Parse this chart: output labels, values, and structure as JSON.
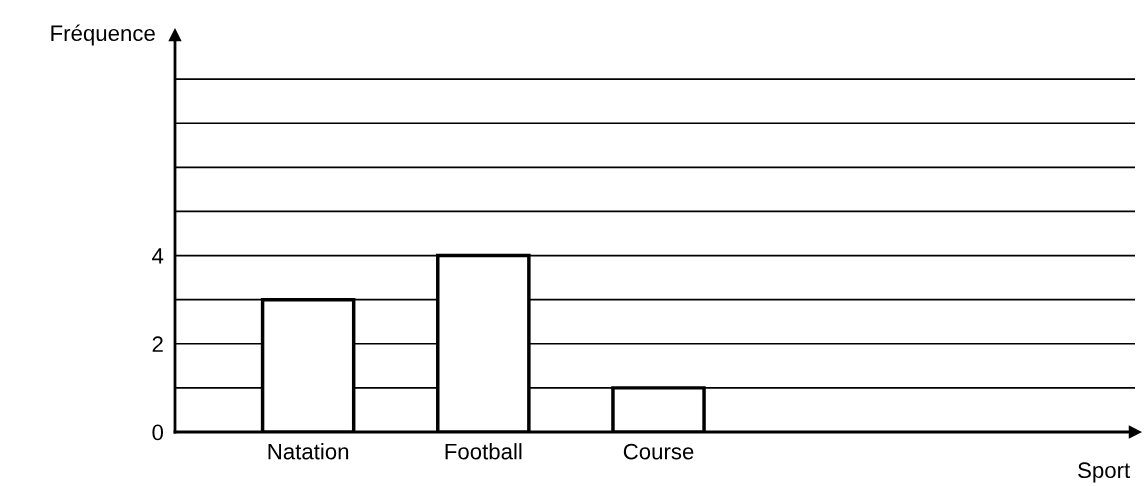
{
  "chart_data": {
    "type": "bar",
    "annotations": [
      "Sport"
    ],
    "ylabel": "Fréquence",
    "categories": [
      "Natation",
      "Football",
      "Course"
    ],
    "values": [
      3,
      4,
      1
    ],
    "color": "#ffffff",
    "ylim": [
      0,
      9
    ],
    "yticks": [
      0,
      {
        "value": 1,
        "label": null
      },
      2,
      {
        "value": 3,
        "label": null
      },
      4,
      {
        "value": 5,
        "label": null
      },
      {
        "value": 6,
        "label": null
      },
      {
        "value": 7,
        "label": null
      },
      {
        "value": 8,
        "label": null
      }
    ],
    "grid": "y"
  }
}
